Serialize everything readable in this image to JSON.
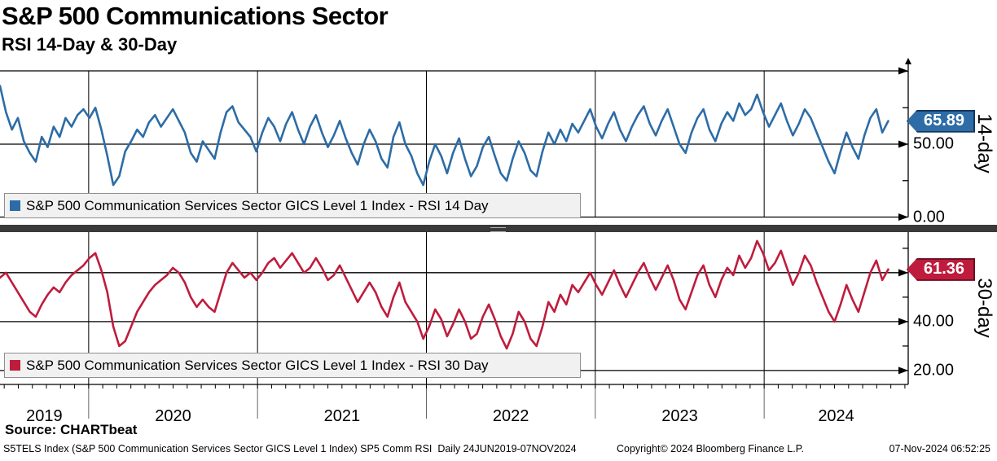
{
  "header": {
    "title": "S&P 500 Communications Sector",
    "subtitle": "RSI 14-Day & 30-Day"
  },
  "colors": {
    "blue_line": "#2d6ca6",
    "blue_tag_border": "#15365f",
    "red_line": "#bf1c3d",
    "red_tag_border": "#6e0e24",
    "grid": "#000000",
    "year_line_below_axis": "#666666",
    "legend_bg": "#f1f1f1",
    "legend_border": "#8f8f8f",
    "separator": "#3a3a3a",
    "separator_grip": "#b5b5b5"
  },
  "panels": [
    {
      "id": "rsi-14",
      "side_label": "14-day",
      "last_value": 65.89,
      "last_value_label": "65.89",
      "ylim": [
        0,
        100.3
      ],
      "gridline_values": [
        50,
        0
      ],
      "tick_values": [
        100,
        75,
        50,
        25,
        0
      ],
      "tick_labels": [
        {
          "value": 50,
          "label": "50.00"
        },
        {
          "value": 0,
          "label": "0.00"
        }
      ],
      "legend_label": "S&P 500 Communication Services Sector GICS Level 1 Index - RSI 14 Day",
      "color_key": "blue_line"
    },
    {
      "id": "rsi-30",
      "side_label": "30-day",
      "last_value": 61.36,
      "last_value_label": "61.36",
      "ylim": [
        14.3,
        76.6
      ],
      "gridline_values": [
        60,
        40,
        20
      ],
      "tick_values": [
        70,
        60,
        50,
        40,
        30,
        20
      ],
      "tick_labels": [
        {
          "value": 40,
          "label": "40.00"
        },
        {
          "value": 20,
          "label": "20.00"
        }
      ],
      "legend_label": "S&P 500 Communication Services Sector GICS Level 1 Index - RSI 30 Day",
      "color_key": "red_line"
    }
  ],
  "x_axis": {
    "year_labels": [
      "2019",
      "2020",
      "2021",
      "2022",
      "2023",
      "2024"
    ]
  },
  "footer": {
    "source": "Source: CHARTbeat",
    "meta_left": "S5TELS Index (S&P 500 Communication Services Sector GICS Level 1 Index) SP5 Comm RSI  Daily 24JUN2019-07NOV2024",
    "copyright": "Copyright© 2024 Bloomberg Finance L.P.",
    "timestamp": "07-Nov-2024 06:52:25"
  },
  "chart_data": {
    "type": "line",
    "x_range_years": [
      2019.475,
      2024.853
    ],
    "x_note": "daily RSI 24JUN2019-07NOV2024, points evenly spaced over range",
    "panels_ylim": [
      [
        0,
        100.3
      ],
      [
        14.3,
        76.6
      ]
    ],
    "grid": "on",
    "legend_position": "bottom-left inside each panel",
    "series": [
      {
        "name": "S&P 500 Communication Services Sector GICS Level 1 Index - RSI 14 Day",
        "panel": 0,
        "color": "#2d6ca6",
        "last_value": 65.89,
        "values": [
          90,
          72,
          60,
          68,
          52,
          44,
          38,
          55,
          48,
          62,
          55,
          68,
          62,
          70,
          74,
          68,
          75,
          60,
          42,
          22,
          28,
          45,
          52,
          60,
          55,
          65,
          70,
          62,
          68,
          74,
          66,
          58,
          44,
          38,
          52,
          46,
          40,
          58,
          72,
          76,
          65,
          60,
          55,
          45,
          58,
          68,
          62,
          52,
          64,
          72,
          60,
          50,
          62,
          70,
          58,
          48,
          56,
          66,
          54,
          44,
          36,
          50,
          60,
          52,
          40,
          34,
          55,
          65,
          50,
          42,
          30,
          22,
          38,
          50,
          42,
          30,
          44,
          54,
          40,
          28,
          35,
          48,
          55,
          42,
          30,
          25,
          40,
          52,
          44,
          32,
          28,
          45,
          58,
          50,
          60,
          52,
          64,
          58,
          66,
          74,
          62,
          54,
          64,
          72,
          60,
          52,
          62,
          70,
          76,
          64,
          56,
          66,
          74,
          62,
          50,
          44,
          58,
          68,
          74,
          60,
          52,
          64,
          72,
          66,
          78,
          70,
          74,
          84,
          72,
          62,
          70,
          78,
          66,
          56,
          64,
          74,
          68,
          58,
          48,
          38,
          30,
          45,
          58,
          48,
          40,
          56,
          68,
          74,
          58,
          65.89
        ]
      },
      {
        "name": "S&P 500 Communication Services Sector GICS Level 1 Index - RSI 30 Day",
        "panel": 1,
        "color": "#bf1c3d",
        "last_value": 61.36,
        "values": [
          58,
          60,
          56,
          52,
          48,
          44,
          42,
          47,
          51,
          54,
          52,
          56,
          59,
          61,
          63,
          66,
          68,
          61,
          52,
          38,
          30,
          32,
          38,
          44,
          48,
          52,
          55,
          57,
          59,
          62,
          60,
          56,
          50,
          46,
          49,
          46,
          44,
          52,
          60,
          64,
          61,
          58,
          60,
          57,
          60,
          64,
          66,
          62,
          65,
          68,
          64,
          60,
          62,
          66,
          62,
          57,
          59,
          63,
          58,
          53,
          48,
          52,
          56,
          52,
          46,
          42,
          50,
          56,
          48,
          44,
          40,
          33,
          38,
          45,
          41,
          34,
          39,
          45,
          40,
          33,
          35,
          42,
          47,
          41,
          34,
          29,
          35,
          44,
          40,
          33,
          30,
          38,
          48,
          44,
          51,
          47,
          55,
          52,
          56,
          60,
          55,
          51,
          56,
          61,
          55,
          50,
          55,
          60,
          64,
          58,
          53,
          58,
          63,
          57,
          49,
          45,
          52,
          59,
          63,
          55,
          50,
          57,
          62,
          59,
          67,
          62,
          66,
          73,
          68,
          61,
          64,
          69,
          62,
          55,
          60,
          67,
          63,
          56,
          50,
          44,
          40,
          47,
          55,
          49,
          44,
          52,
          60,
          65,
          57,
          61.36
        ]
      }
    ]
  }
}
